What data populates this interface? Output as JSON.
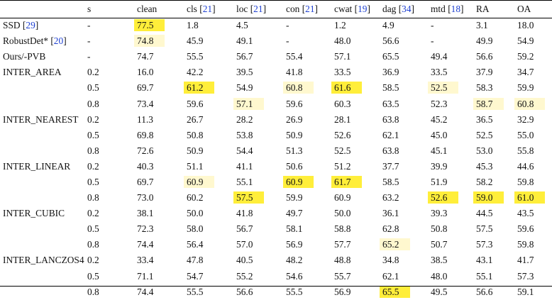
{
  "header": {
    "s": "s",
    "clean": "clean",
    "cls": "cls",
    "cls_ref": "21",
    "loc": "loc",
    "loc_ref": "21",
    "con": "con",
    "con_ref": "21",
    "cwat": "cwat",
    "cwat_ref": "19",
    "dag": "dag",
    "dag_ref": "34",
    "mtd": "mtd",
    "mtd_ref": "18",
    "ra": "RA",
    "oa": "OA"
  },
  "rows": [
    {
      "method": "SSD",
      "ref": "29",
      "s": "-",
      "v": [
        "77.5",
        "1.8",
        "4.5",
        "-",
        "1.2",
        "4.9",
        "-",
        "3.1",
        "18.0"
      ]
    },
    {
      "method": "RobustDet*",
      "ref": "20",
      "s": "-",
      "v": [
        "74.8",
        "45.9",
        "49.1",
        "-",
        "48.0",
        "56.6",
        "-",
        "49.9",
        "54.9"
      ]
    },
    {
      "method": "Ours/-PVB",
      "ref": "",
      "s": "-",
      "v": [
        "74.7",
        "55.5",
        "56.7",
        "55.4",
        "57.1",
        "65.5",
        "49.4",
        "56.6",
        "59.2"
      ]
    },
    {
      "method": "INTER_AREA",
      "ref": "",
      "s": "0.2",
      "v": [
        "16.0",
        "42.2",
        "39.5",
        "41.8",
        "33.5",
        "36.9",
        "33.5",
        "37.9",
        "34.7"
      ]
    },
    {
      "method": "",
      "ref": "",
      "s": "0.5",
      "v": [
        "69.7",
        "61.2",
        "54.9",
        "60.8",
        "61.6",
        "58.5",
        "52.5",
        "58.3",
        "59.9"
      ]
    },
    {
      "method": "",
      "ref": "",
      "s": "0.8",
      "v": [
        "73.4",
        "59.6",
        "57.1",
        "59.6",
        "60.3",
        "63.5",
        "52.3",
        "58.7",
        "60.8"
      ]
    },
    {
      "method": "INTER_NEAREST",
      "ref": "",
      "s": "0.2",
      "v": [
        "11.3",
        "26.7",
        "28.2",
        "26.9",
        "28.1",
        "63.8",
        "45.2",
        "36.5",
        "32.9"
      ]
    },
    {
      "method": "",
      "ref": "",
      "s": "0.5",
      "v": [
        "69.8",
        "50.8",
        "53.8",
        "50.9",
        "52.6",
        "62.1",
        "45.0",
        "52.5",
        "55.0"
      ]
    },
    {
      "method": "",
      "ref": "",
      "s": "0.8",
      "v": [
        "72.6",
        "50.9",
        "54.4",
        "51.3",
        "52.5",
        "63.8",
        "45.1",
        "53.0",
        "55.8"
      ]
    },
    {
      "method": "INTER_LINEAR",
      "ref": "",
      "s": "0.2",
      "v": [
        "40.3",
        "51.1",
        "41.1",
        "50.6",
        "51.2",
        "37.7",
        "39.9",
        "45.3",
        "44.6"
      ]
    },
    {
      "method": "",
      "ref": "",
      "s": "0.5",
      "v": [
        "69.7",
        "60.9",
        "55.1",
        "60.9",
        "61.7",
        "58.5",
        "51.9",
        "58.2",
        "59.8"
      ]
    },
    {
      "method": "",
      "ref": "",
      "s": "0.8",
      "v": [
        "73.0",
        "60.2",
        "57.5",
        "59.9",
        "60.9",
        "63.2",
        "52.6",
        "59.0",
        "61.0"
      ]
    },
    {
      "method": "INTER_CUBIC",
      "ref": "",
      "s": "0.2",
      "v": [
        "38.1",
        "50.0",
        "41.8",
        "49.7",
        "50.0",
        "36.1",
        "39.3",
        "44.5",
        "43.5"
      ]
    },
    {
      "method": "",
      "ref": "",
      "s": "0.5",
      "v": [
        "72.3",
        "58.0",
        "56.7",
        "58.1",
        "58.8",
        "62.8",
        "50.8",
        "57.5",
        "59.6"
      ]
    },
    {
      "method": "",
      "ref": "",
      "s": "0.8",
      "v": [
        "74.4",
        "56.4",
        "57.0",
        "56.9",
        "57.7",
        "65.2",
        "50.7",
        "57.3",
        "59.8"
      ]
    },
    {
      "method": "INTER_LANCZOS4",
      "ref": "",
      "s": "0.2",
      "v": [
        "33.4",
        "47.8",
        "40.5",
        "48.2",
        "48.8",
        "34.8",
        "38.5",
        "43.1",
        "41.7"
      ]
    },
    {
      "method": "",
      "ref": "",
      "s": "0.5",
      "v": [
        "71.1",
        "54.7",
        "55.2",
        "54.6",
        "55.7",
        "62.1",
        "48.0",
        "55.1",
        "57.3"
      ]
    },
    {
      "method": "",
      "ref": "",
      "s": "0.8",
      "v": [
        "74.4",
        "55.5",
        "56.6",
        "55.5",
        "56.9",
        "65.5",
        "49.5",
        "56.6",
        "59.1"
      ]
    }
  ],
  "highlight_colors": {
    "strong": "#ffee3a",
    "light": "#fff8cf"
  },
  "highlights": {
    "strong": [
      [
        0,
        0
      ],
      [
        4,
        1
      ],
      [
        4,
        4
      ],
      [
        10,
        3
      ],
      [
        10,
        4
      ],
      [
        11,
        2
      ],
      [
        11,
        6
      ],
      [
        11,
        7
      ],
      [
        11,
        8
      ],
      [
        17,
        5
      ]
    ],
    "light": [
      [
        1,
        0
      ],
      [
        4,
        3
      ],
      [
        4,
        6
      ],
      [
        5,
        2
      ],
      [
        5,
        7
      ],
      [
        5,
        8
      ],
      [
        10,
        1
      ],
      [
        14,
        5
      ]
    ]
  },
  "reference_color": "#1d3fd0"
}
